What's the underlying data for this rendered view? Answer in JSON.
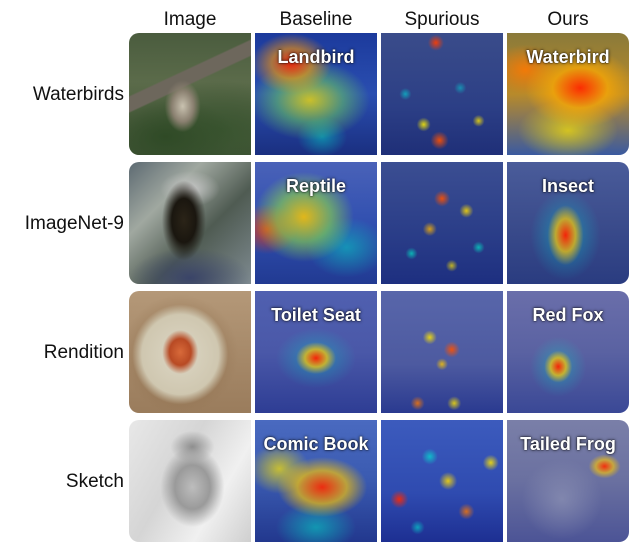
{
  "columns": [
    "Image",
    "Baseline",
    "Spurious",
    "Ours"
  ],
  "rows": [
    {
      "label": "Waterbirds",
      "baseline_pred": "Landbird",
      "ours_pred": "Waterbird"
    },
    {
      "label": "ImageNet-9",
      "baseline_pred": "Reptile",
      "ours_pred": "Insect"
    },
    {
      "label": "Rendition",
      "baseline_pred": "Toilet Seat",
      "ours_pred": "Red Fox"
    },
    {
      "label": "Sketch",
      "baseline_pred": "Comic Book",
      "ours_pred": "Tailed Frog"
    }
  ]
}
